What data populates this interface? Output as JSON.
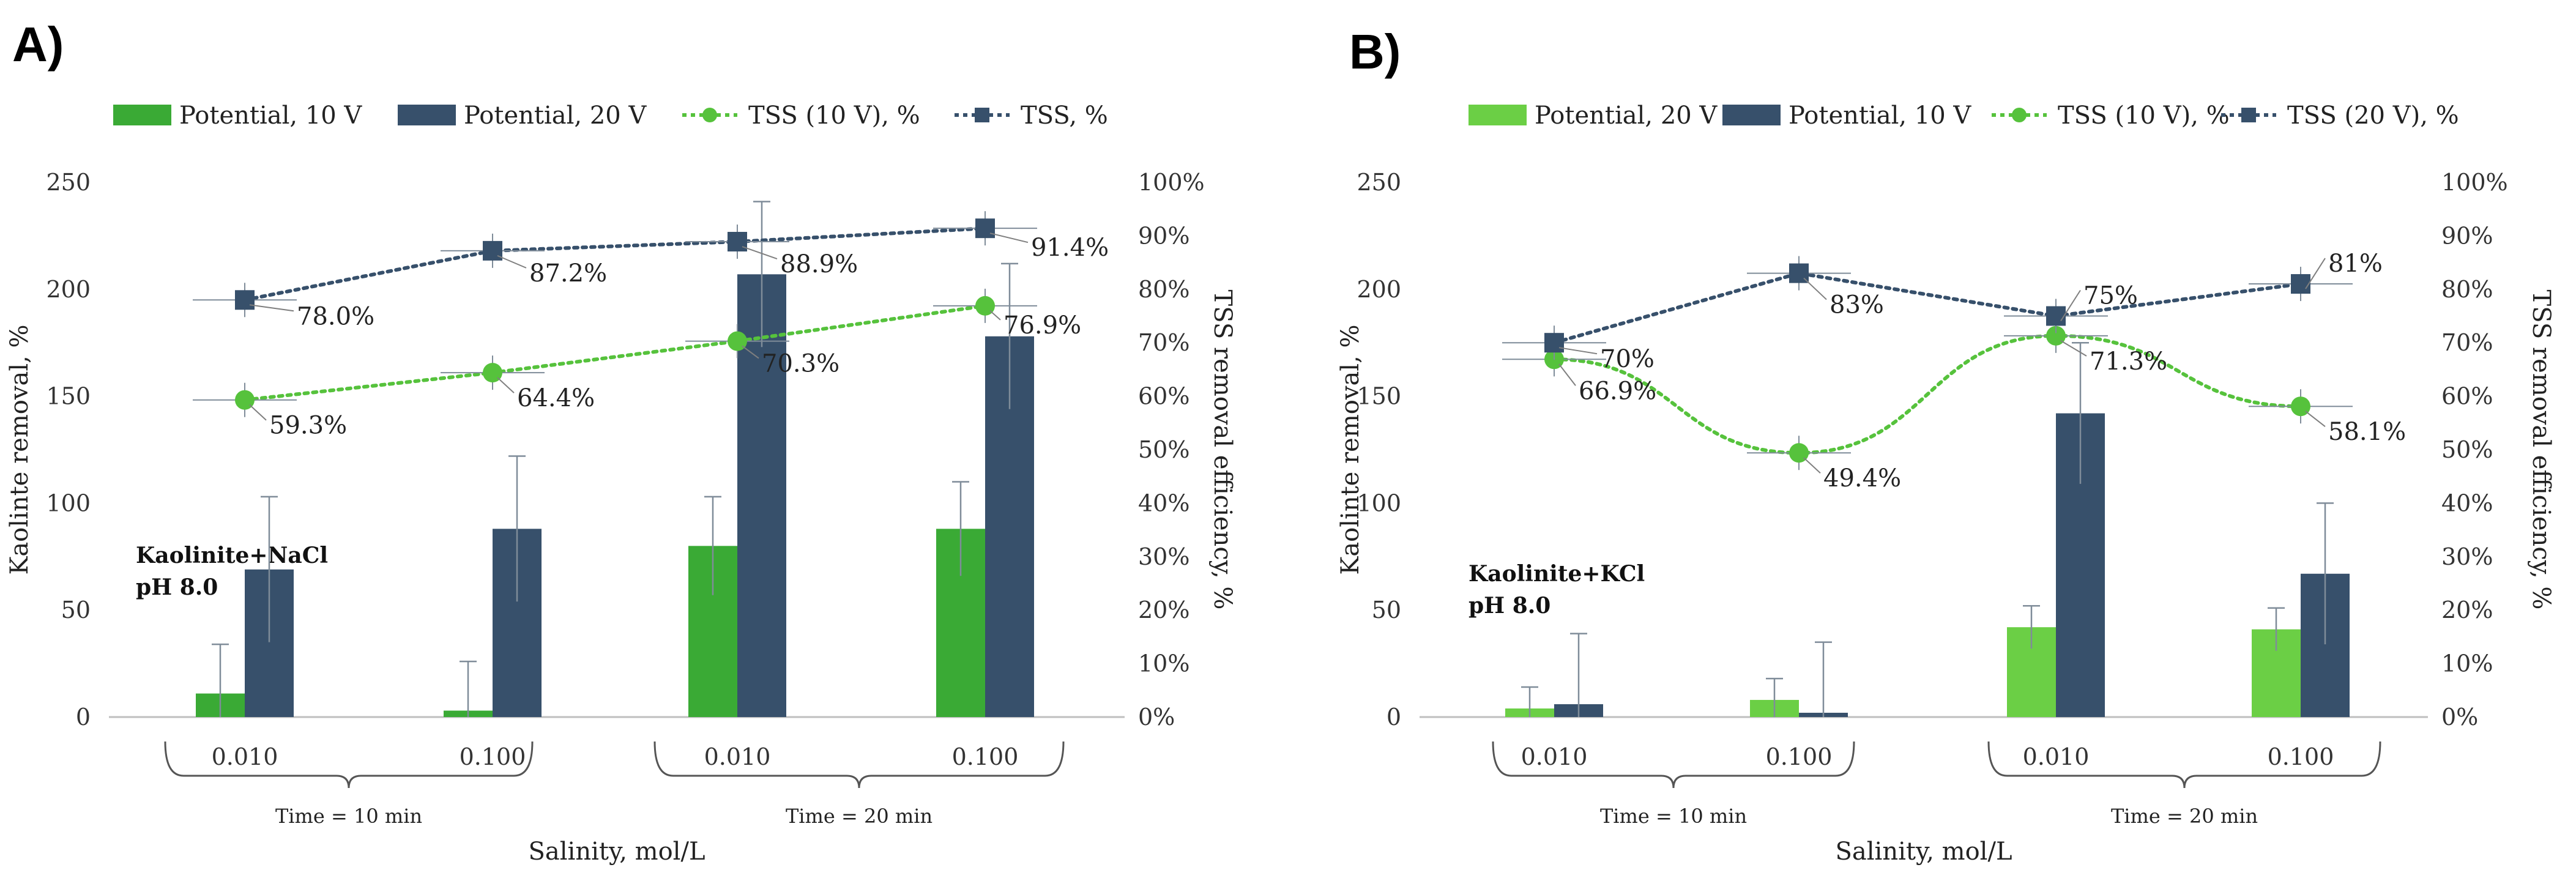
{
  "chart_data": [
    {
      "type": "bar",
      "panel_label": "A)",
      "categories": [
        "0.010",
        "0.100",
        "0.010",
        "0.100"
      ],
      "time_groups": [
        "Time = 10 min",
        "Time = 20 min"
      ],
      "xlabel": "Salinity, mol/L",
      "ylabel": "Kaolinte removal, %",
      "y2label": "TSS  removal efficiency, %",
      "ylim": [
        0,
        250
      ],
      "yticks": [
        "0",
        "50",
        "100",
        "150",
        "200",
        "250"
      ],
      "y2lim": [
        0,
        100
      ],
      "y2ticks": [
        "0%",
        "10%",
        "20%",
        "30%",
        "40%",
        "50%",
        "60%",
        "70%",
        "80%",
        "90%",
        "100%"
      ],
      "annotation_line1": "Kaolinite+NaCl",
      "annotation_line2": "pH 8.0",
      "bar_series": [
        {
          "name": "Potential, 10 V",
          "color": "#3aaa35",
          "values": [
            11,
            3,
            80,
            88
          ],
          "err": [
            23,
            23,
            23,
            22
          ]
        },
        {
          "name": "Potential, 20 V",
          "color": "#37506b",
          "values": [
            69,
            88,
            207,
            178
          ],
          "err": [
            34,
            34,
            34,
            34
          ]
        }
      ],
      "line_series": [
        {
          "name": "TSS (10 V), %",
          "color": "#56c23c",
          "marker": "circle",
          "values": [
            59.3,
            64.4,
            70.3,
            76.9
          ],
          "labels": [
            "59.3%",
            "64.4%",
            "70.3%",
            "76.9%"
          ]
        },
        {
          "name": "TSS, %",
          "color": "#37506b",
          "marker": "square",
          "values": [
            78.0,
            87.2,
            88.9,
            91.4
          ],
          "labels": [
            "78.0%",
            "87.2%",
            "88.9%",
            "91.4%"
          ]
        }
      ]
    },
    {
      "type": "bar",
      "panel_label": "B)",
      "categories": [
        "0.010",
        "0.100",
        "0.010",
        "0.100"
      ],
      "time_groups": [
        "Time = 10 min",
        "Time = 20 min"
      ],
      "xlabel": "Salinity, mol/L",
      "ylabel": "Kaolinte removal, %",
      "y2label": "TSS  removal efficiency, %",
      "ylim": [
        0,
        250
      ],
      "yticks": [
        "0",
        "50",
        "100",
        "150",
        "200",
        "250"
      ],
      "y2lim": [
        0,
        100
      ],
      "y2ticks": [
        "0%",
        "10%",
        "20%",
        "30%",
        "40%",
        "50%",
        "60%",
        "70%",
        "80%",
        "90%",
        "100%"
      ],
      "annotation_line1": "Kaolinite+KCl",
      "annotation_line2": "pH 8.0",
      "bar_series": [
        {
          "name": "Potential, 20 V",
          "color": "#6bcf45",
          "values": [
            4,
            8,
            42,
            41
          ],
          "err": [
            10,
            10,
            10,
            10
          ]
        },
        {
          "name": "Potential, 10 V",
          "color": "#37506b",
          "values": [
            6,
            2,
            142,
            67
          ],
          "err": [
            33,
            33,
            33,
            33
          ]
        }
      ],
      "line_series": [
        {
          "name": "TSS (10 V), %",
          "color": "#56c23c",
          "marker": "circle",
          "values": [
            66.9,
            49.4,
            71.3,
            58.1
          ],
          "labels": [
            "66.9%",
            "49.4%",
            "71.3%",
            "58.1%"
          ]
        },
        {
          "name": "TSS (20 V), %",
          "color": "#37506b",
          "marker": "square",
          "values": [
            70,
            83,
            75,
            81
          ],
          "labels": [
            "70%",
            "83%",
            "75%",
            "81%"
          ]
        }
      ]
    }
  ]
}
